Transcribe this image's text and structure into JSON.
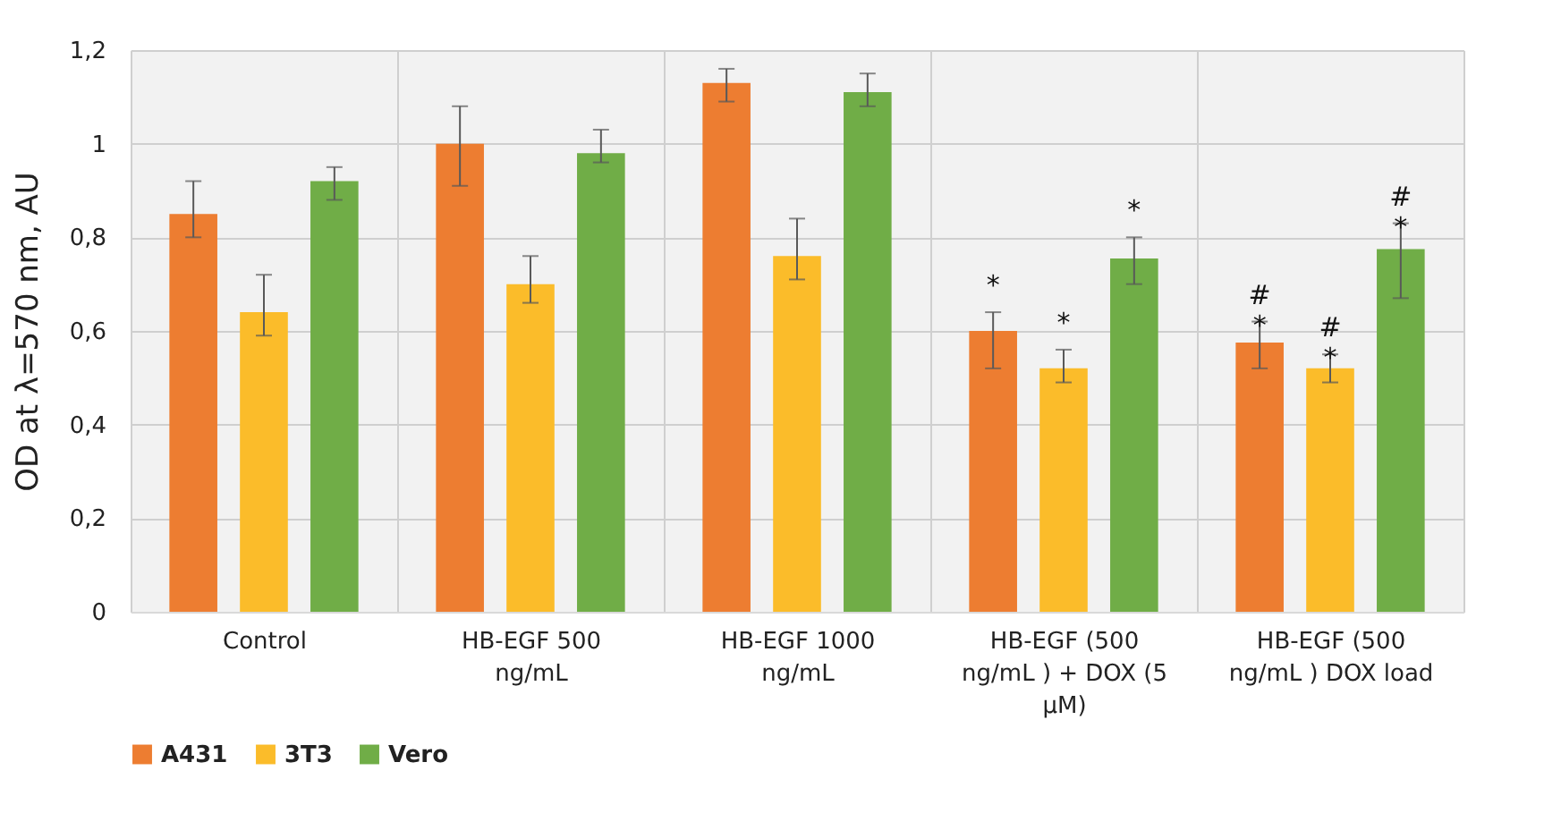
{
  "chart_data": {
    "type": "bar",
    "ylabel": "OD at λ=570 nm, AU",
    "categories": [
      "Control",
      "HB-EGF 500 ng/mL",
      "HB-EGF 1000 ng/mL",
      "HB-EGF (500 ng/mL ) + DOX (5 µM)",
      "HB-EGF (500 ng/mL ) DOX load"
    ],
    "series": [
      {
        "name": "A431",
        "color": "#ed7d31",
        "values": [
          0.85,
          1.0,
          1.13,
          0.6,
          0.575
        ],
        "errors": [
          [
            0.8,
            0.92
          ],
          [
            0.91,
            1.08
          ],
          [
            1.09,
            1.16
          ],
          [
            0.52,
            0.64
          ],
          [
            0.52,
            0.62
          ]
        ],
        "value_labels": [
          null,
          null,
          null,
          "*",
          "#\n*"
        ]
      },
      {
        "name": "3T3",
        "color": "#fbbc2a",
        "values": [
          0.64,
          0.7,
          0.76,
          0.52,
          0.52
        ],
        "errors": [
          [
            0.59,
            0.72
          ],
          [
            0.66,
            0.76
          ],
          [
            0.71,
            0.84
          ],
          [
            0.49,
            0.56
          ],
          [
            0.49,
            0.55
          ]
        ],
        "value_labels": [
          null,
          null,
          null,
          "*",
          "#\n*"
        ]
      },
      {
        "name": "Vero",
        "color": "#70ad47",
        "values": [
          0.92,
          0.98,
          1.11,
          0.755,
          0.775
        ],
        "errors": [
          [
            0.88,
            0.95
          ],
          [
            0.96,
            1.03
          ],
          [
            1.08,
            1.15
          ],
          [
            0.7,
            0.8
          ],
          [
            0.67,
            0.83
          ]
        ],
        "value_labels": [
          null,
          null,
          null,
          "*",
          "#\n*"
        ]
      }
    ],
    "ylim": [
      0,
      1.2
    ],
    "yticks": [
      0,
      {
        "value": 0.2,
        "label": "0,2"
      },
      {
        "value": 0.4,
        "label": "0,4"
      },
      {
        "value": 0.6,
        "label": "0,6"
      },
      {
        "value": 0.8,
        "label": "0,8"
      },
      1,
      {
        "value": 1.2,
        "label": "1,2"
      }
    ],
    "grid": true,
    "legend": "bottom"
  }
}
